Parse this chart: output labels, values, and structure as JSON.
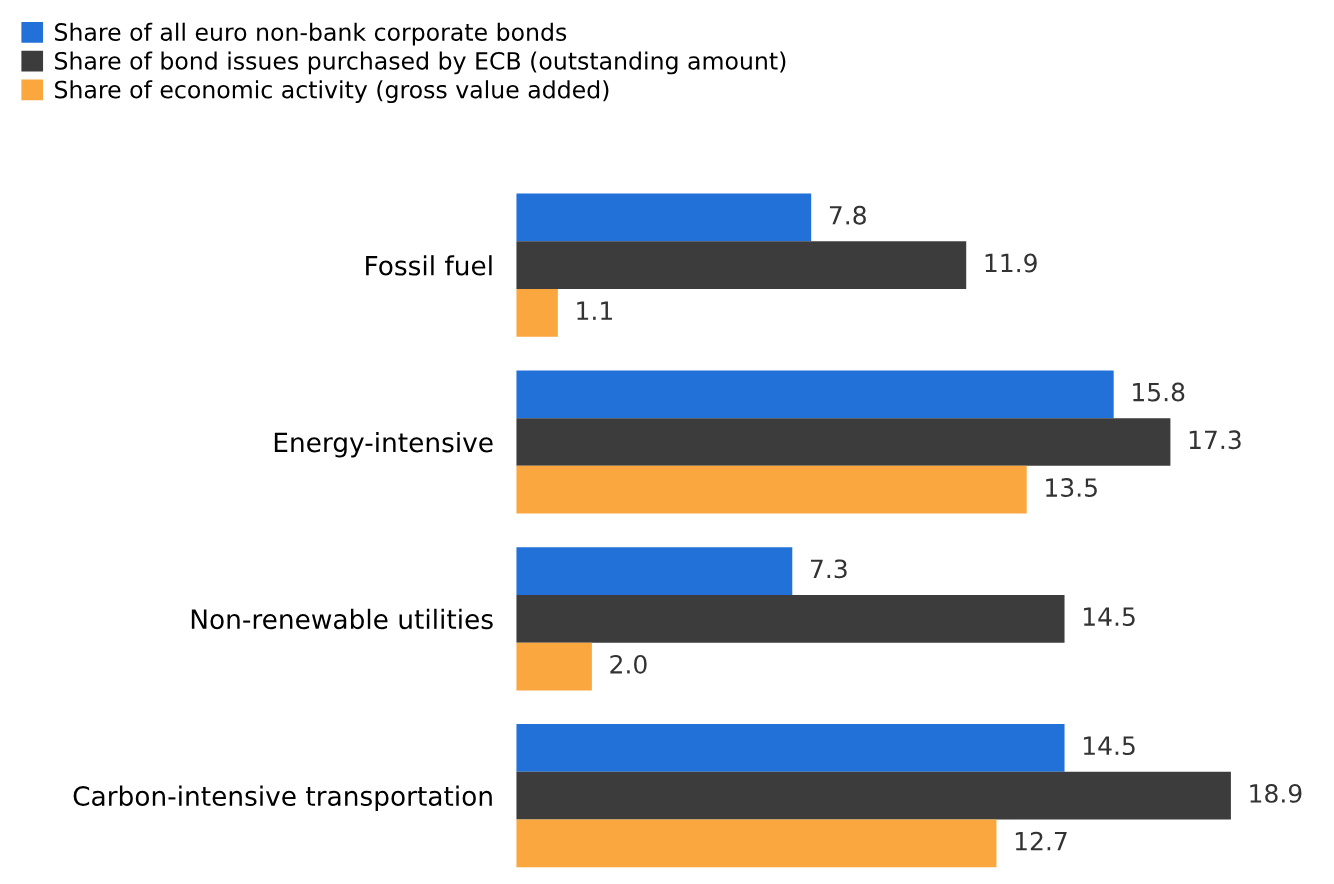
{
  "chart_data": {
    "type": "bar",
    "orientation": "horizontal",
    "categories": [
      "Fossil fuel",
      "Energy-intensive",
      "Non-renewable utilities",
      "Carbon-intensive transportation"
    ],
    "series": [
      {
        "name": "Share of all euro non-bank corporate bonds",
        "color": "#2271d9",
        "values": [
          7.8,
          15.8,
          7.3,
          14.5
        ],
        "value_labels": [
          "7.8",
          "15.8",
          "7.3",
          "14.5"
        ]
      },
      {
        "name": "Share of bond issues purchased by ECB (outstanding amount)",
        "color": "#3c3c3c",
        "values": [
          11.9,
          17.3,
          14.5,
          18.9
        ],
        "value_labels": [
          "11.9",
          "17.3",
          "14.5",
          "18.9"
        ]
      },
      {
        "name": "Share of economic activity (gross value added)",
        "color": "#f9a73e",
        "values": [
          1.1,
          13.5,
          2.0,
          12.7
        ],
        "value_labels": [
          "1.1",
          "13.5",
          "2.0",
          "12.7"
        ]
      }
    ],
    "legend": "top left",
    "grid": false
  }
}
